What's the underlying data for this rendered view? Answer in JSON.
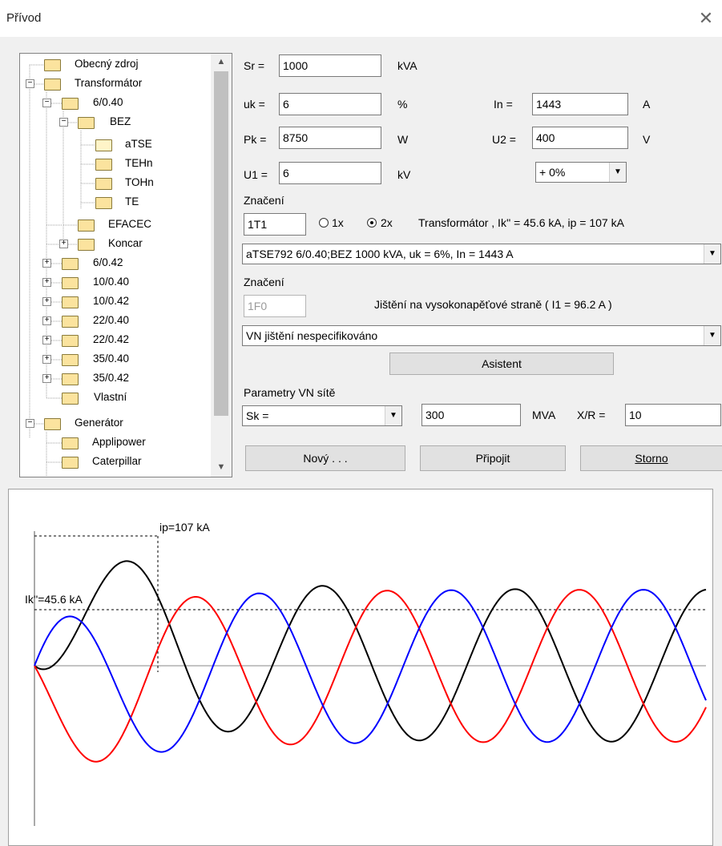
{
  "window": {
    "title": "Přívod"
  },
  "tree": {
    "items": [
      "Obecný zdroj",
      "Transformátor",
      "6/0.40",
      "BEZ",
      "aTSE",
      "TEHn",
      "TOHn",
      "TE",
      "EFACEC",
      "Koncar",
      "6/0.42",
      "10/0.40",
      "10/0.42",
      "22/0.40",
      "22/0.42",
      "35/0.40",
      "35/0.42",
      "Vlastní",
      "Generátor",
      "Applipower",
      "Caterpillar"
    ],
    "minus": "−",
    "plus": "+"
  },
  "scroll": {
    "up": "▲",
    "down": "▼"
  },
  "params": {
    "sr_label": "Sr =",
    "sr_value": "1000",
    "sr_unit": "kVA",
    "uk_label": "uk =",
    "uk_value": "6",
    "uk_unit": "%",
    "pk_label": "Pk =",
    "pk_value": "8750",
    "pk_unit": "W",
    "u1_label": "U1 =",
    "u1_value": "6",
    "u1_unit": "kV",
    "in_label": "In =",
    "in_value": "1443",
    "in_unit": "A",
    "u2_label": "U2 =",
    "u2_value": "400",
    "u2_unit": "V",
    "tap_value": "+ 0%"
  },
  "transformer": {
    "designation_label": "Značení",
    "designation_value": "1T1",
    "radio_1x": "1x",
    "radio_2x": "2x",
    "info": "Transformátor , Ik'' = 45.6 kA, ip = 107 kA",
    "type_value": "aTSE792 6/0.40;BEZ 1000 kVA, uk = 6%, In = 1443 A"
  },
  "hv": {
    "designation_label": "Značení",
    "designation_value": "1F0",
    "protection_info": "Jištění na vysokonapěťové straně ( I1 = 96.2 A )",
    "protection_value": "VN jištění nespecifikováno",
    "assistant_label": "Asistent"
  },
  "network": {
    "label": "Parametry VN sítě",
    "sk_select": "Sk =",
    "sk_value": "300",
    "sk_unit": "MVA",
    "xr_label": "X/R =",
    "xr_value": "10"
  },
  "buttons": {
    "new": "Nový . . .",
    "connect": "Připojit",
    "cancel": "Storno"
  },
  "graph": {
    "ip_label": "ip=107 kA",
    "ik_label": "Ik''=45.6 kA",
    "colors": {
      "phase1": "#000000",
      "phase2": "#ff0000",
      "phase3": "#0000ff"
    }
  }
}
